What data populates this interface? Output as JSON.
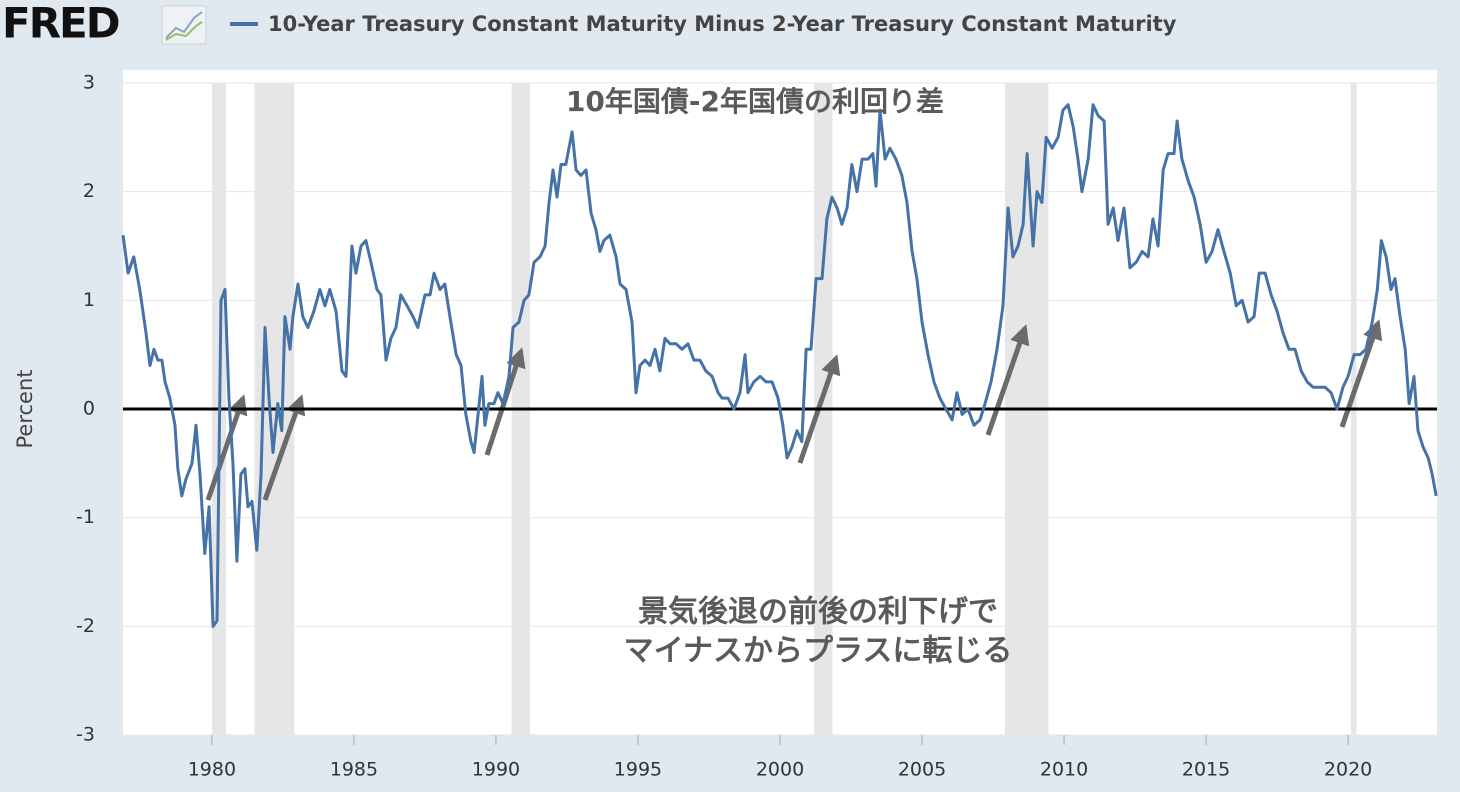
{
  "chart_data": {
    "type": "line",
    "logo": "FRED",
    "ylabel": "Percent",
    "annotations": [
      "10年国債-2年国債の利回り差",
      "景気後退の前後の利下げで",
      "マイナスからプラスに転じる"
    ],
    "xlim": [
      1976.87,
      2023.13
    ],
    "ylim": [
      -3,
      3
    ],
    "xticks": [
      1980,
      1985,
      1990,
      1995,
      2000,
      2005,
      2010,
      2015,
      2020
    ],
    "yticks": [
      -3,
      -2,
      -1,
      0,
      1,
      2,
      3
    ],
    "grid": true,
    "reference_line": 0,
    "recessions": [
      [
        1980.0,
        1980.5
      ],
      [
        1981.5,
        1982.9
      ],
      [
        1990.55,
        1991.2
      ],
      [
        2001.2,
        2001.85
      ],
      [
        2007.92,
        2009.45
      ],
      [
        2020.1,
        2020.3
      ]
    ],
    "x": [
      1976.87,
      1977.05,
      1977.25,
      1977.46,
      1977.68,
      1977.82,
      1977.96,
      1978.1,
      1978.24,
      1978.35,
      1978.52,
      1978.7,
      1978.8,
      1978.94,
      1979.08,
      1979.3,
      1979.44,
      1979.58,
      1979.75,
      1979.9,
      1980.04,
      1980.18,
      1980.32,
      1980.46,
      1980.6,
      1980.74,
      1980.88,
      1981.02,
      1981.16,
      1981.27,
      1981.41,
      1981.58,
      1981.73,
      1981.87,
      1982.01,
      1982.15,
      1982.32,
      1982.46,
      1982.57,
      1982.75,
      1982.85,
      1983.03,
      1983.2,
      1983.38,
      1983.59,
      1983.8,
      1983.98,
      1984.15,
      1984.37,
      1984.58,
      1984.72,
      1984.93,
      1985.07,
      1985.25,
      1985.42,
      1985.6,
      1985.81,
      1985.95,
      1986.13,
      1986.3,
      1986.48,
      1986.65,
      1986.87,
      1987.08,
      1987.25,
      1987.5,
      1987.68,
      1987.82,
      1988.03,
      1988.2,
      1988.38,
      1988.6,
      1988.77,
      1988.94,
      1989.12,
      1989.23,
      1989.37,
      1989.51,
      1989.61,
      1989.75,
      1989.93,
      1990.07,
      1990.25,
      1990.46,
      1990.6,
      1990.81,
      1990.99,
      1991.16,
      1991.34,
      1991.55,
      1991.73,
      1991.87,
      1992.01,
      1992.15,
      1992.29,
      1992.46,
      1992.68,
      1992.82,
      1992.99,
      1993.17,
      1993.35,
      1993.52,
      1993.66,
      1993.8,
      1994.01,
      1994.23,
      1994.37,
      1994.58,
      1994.79,
      1994.93,
      1995.07,
      1995.25,
      1995.42,
      1995.6,
      1995.77,
      1995.95,
      1996.13,
      1996.34,
      1996.55,
      1996.76,
      1996.97,
      1997.18,
      1997.39,
      1997.61,
      1997.82,
      1997.96,
      1998.17,
      1998.38,
      1998.59,
      1998.77,
      1998.87,
      1999.08,
      1999.3,
      1999.51,
      1999.72,
      1999.93,
      2000.1,
      2000.25,
      2000.42,
      2000.6,
      2000.77,
      2000.92,
      2001.09,
      2001.27,
      2001.48,
      2001.65,
      2001.83,
      2002.01,
      2002.18,
      2002.36,
      2002.53,
      2002.71,
      2002.89,
      2003.1,
      2003.27,
      2003.38,
      2003.52,
      2003.7,
      2003.87,
      2004.08,
      2004.29,
      2004.47,
      2004.65,
      2004.82,
      2005.0,
      2005.21,
      2005.42,
      2005.63,
      2005.84,
      2006.06,
      2006.23,
      2006.41,
      2006.62,
      2006.83,
      2007.04,
      2007.22,
      2007.43,
      2007.64,
      2007.85,
      2008.03,
      2008.2,
      2008.38,
      2008.56,
      2008.7,
      2008.91,
      2009.05,
      2009.22,
      2009.37,
      2009.58,
      2009.79,
      2009.96,
      2010.14,
      2010.32,
      2010.49,
      2010.63,
      2010.85,
      2011.02,
      2011.2,
      2011.41,
      2011.55,
      2011.73,
      2011.9,
      2012.11,
      2012.32,
      2012.54,
      2012.75,
      2012.96,
      2013.13,
      2013.31,
      2013.49,
      2013.66,
      2013.87,
      2013.98,
      2014.15,
      2014.37,
      2014.58,
      2014.79,
      2015.0,
      2015.21,
      2015.42,
      2015.63,
      2015.85,
      2016.06,
      2016.27,
      2016.48,
      2016.69,
      2016.87,
      2017.08,
      2017.29,
      2017.5,
      2017.71,
      2017.92,
      2018.13,
      2018.35,
      2018.56,
      2018.77,
      2018.98,
      2019.19,
      2019.4,
      2019.61,
      2019.82,
      2020.0,
      2020.21,
      2020.42,
      2020.63,
      2020.85,
      2021.03,
      2021.17,
      2021.34,
      2021.51,
      2021.65,
      2021.83,
      2022.01,
      2022.15,
      2022.32,
      2022.46,
      2022.64,
      2022.82,
      2022.96,
      2023.1
    ],
    "series": [
      {
        "name": "10-Year Treasury Constant Maturity Minus 2-Year Treasury Constant Maturity",
        "color": "#4572a7",
        "values": [
          1.6,
          1.25,
          1.4,
          1.1,
          0.7,
          0.4,
          0.55,
          0.45,
          0.45,
          0.25,
          0.1,
          -0.15,
          -0.55,
          -0.8,
          -0.65,
          -0.5,
          -0.15,
          -0.6,
          -1.33,
          -0.9,
          -2.0,
          -1.95,
          1.0,
          1.1,
          0.1,
          -0.5,
          -1.4,
          -0.6,
          -0.55,
          -0.9,
          -0.85,
          -1.3,
          -0.6,
          0.75,
          0.1,
          -0.4,
          0.05,
          -0.2,
          0.85,
          0.55,
          0.85,
          1.15,
          0.85,
          0.75,
          0.9,
          1.1,
          0.95,
          1.1,
          0.9,
          0.35,
          0.3,
          1.5,
          1.25,
          1.5,
          1.55,
          1.35,
          1.1,
          1.05,
          0.45,
          0.65,
          0.75,
          1.05,
          0.95,
          0.85,
          0.75,
          1.05,
          1.05,
          1.25,
          1.1,
          1.15,
          0.85,
          0.5,
          0.4,
          -0.05,
          -0.3,
          -0.4,
          -0.05,
          0.3,
          -0.15,
          0.05,
          0.05,
          0.15,
          0.05,
          0.3,
          0.75,
          0.8,
          1.0,
          1.05,
          1.35,
          1.4,
          1.5,
          1.9,
          2.2,
          1.95,
          2.25,
          2.25,
          2.55,
          2.2,
          2.15,
          2.2,
          1.8,
          1.65,
          1.45,
          1.55,
          1.6,
          1.4,
          1.15,
          1.1,
          0.8,
          0.15,
          0.4,
          0.45,
          0.4,
          0.55,
          0.35,
          0.65,
          0.6,
          0.6,
          0.55,
          0.6,
          0.45,
          0.45,
          0.35,
          0.3,
          0.15,
          0.1,
          0.1,
          0.0,
          0.15,
          0.5,
          0.15,
          0.25,
          0.3,
          0.25,
          0.25,
          0.1,
          -0.15,
          -0.45,
          -0.35,
          -0.2,
          -0.3,
          0.55,
          0.55,
          1.2,
          1.2,
          1.75,
          1.95,
          1.85,
          1.7,
          1.85,
          2.25,
          2.0,
          2.3,
          2.3,
          2.35,
          2.05,
          2.75,
          2.3,
          2.4,
          2.3,
          2.15,
          1.9,
          1.45,
          1.2,
          0.8,
          0.5,
          0.25,
          0.1,
          0.0,
          -0.1,
          0.15,
          -0.05,
          0.0,
          -0.15,
          -0.1,
          0.05,
          0.25,
          0.55,
          0.95,
          1.85,
          1.4,
          1.5,
          1.7,
          2.35,
          1.5,
          2.0,
          1.9,
          2.5,
          2.4,
          2.5,
          2.75,
          2.8,
          2.6,
          2.3,
          2.0,
          2.3,
          2.8,
          2.7,
          2.65,
          1.7,
          1.85,
          1.55,
          1.85,
          1.3,
          1.35,
          1.45,
          1.4,
          1.75,
          1.5,
          2.2,
          2.35,
          2.35,
          2.65,
          2.3,
          2.1,
          1.95,
          1.7,
          1.35,
          1.45,
          1.65,
          1.45,
          1.25,
          0.95,
          1.0,
          0.8,
          0.85,
          1.25,
          1.25,
          1.05,
          0.9,
          0.7,
          0.55,
          0.55,
          0.35,
          0.25,
          0.2,
          0.2,
          0.2,
          0.15,
          0.0,
          0.2,
          0.3,
          0.5,
          0.5,
          0.55,
          0.8,
          1.1,
          1.55,
          1.4,
          1.1,
          1.2,
          0.85,
          0.55,
          0.05,
          0.3,
          -0.2,
          -0.35,
          -0.45,
          -0.6,
          -0.8
        ]
      }
    ]
  }
}
